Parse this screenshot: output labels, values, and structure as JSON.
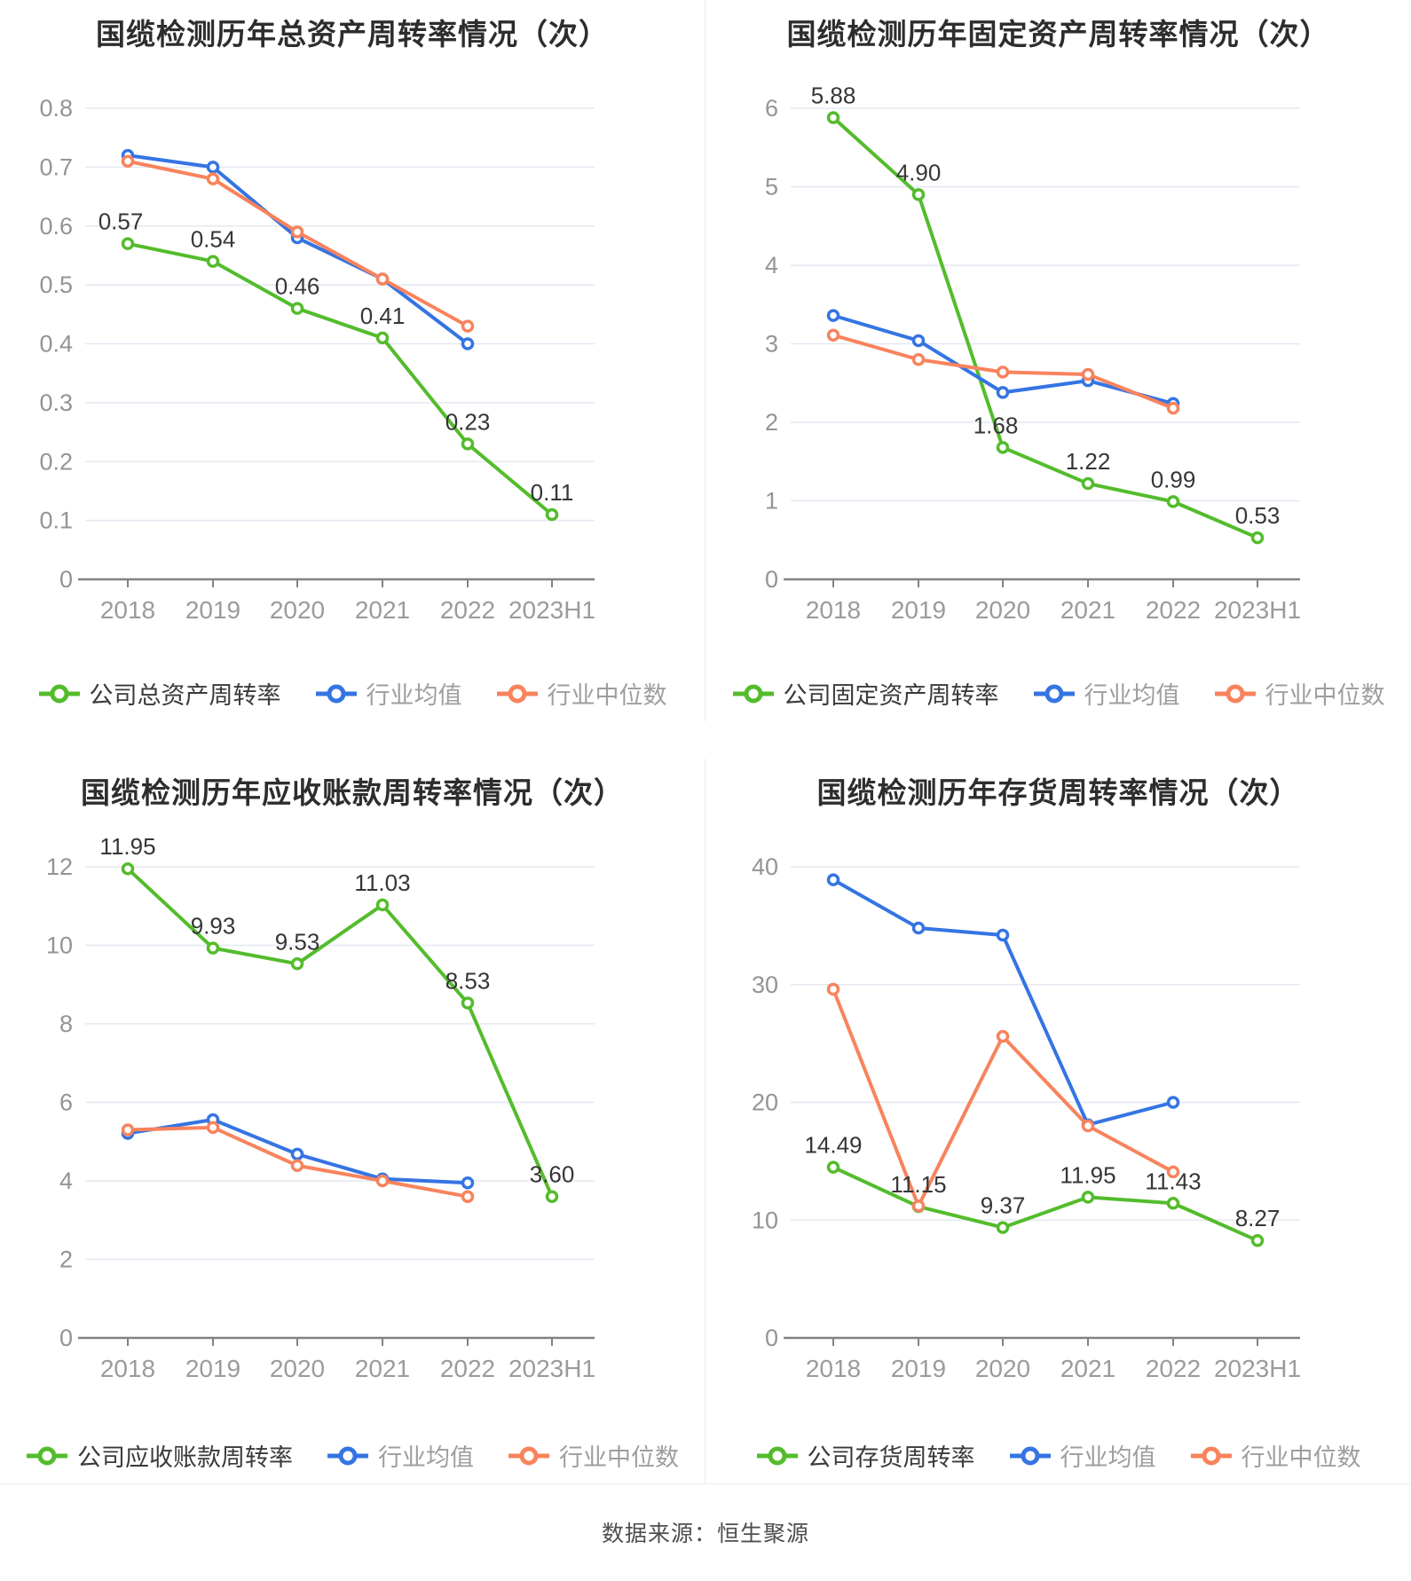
{
  "page": {
    "footer": "数据来源：恒生聚源"
  },
  "colors": {
    "company": "#53bc2c",
    "mean": "#3574e3",
    "median": "#f8835c",
    "grid": "#e4e8f2",
    "axis": "#828282",
    "tick_label": "#949494",
    "title": "#2d2d2d",
    "data_label": "#363636",
    "legend_muted": "#9e9e9e",
    "divider": "#ececec"
  },
  "legend": {
    "mean_label": "行业均值",
    "median_label": "行业中位数"
  },
  "chart_data": [
    {
      "type": "line",
      "title": "国缆检测历年总资产周转率情况（次）",
      "categories": [
        "2018",
        "2019",
        "2020",
        "2021",
        "2022",
        "2023H1"
      ],
      "ylim": [
        0,
        0.8
      ],
      "ystep": 0.1,
      "grid": true,
      "legend_position": "bottom",
      "series": [
        {
          "name": "公司总资产周转率",
          "role": "company",
          "values": [
            0.57,
            0.54,
            0.46,
            0.41,
            0.23,
            0.11
          ],
          "data_labels": [
            "0.57",
            "0.54",
            "0.46",
            "0.41",
            "0.23",
            "0.11"
          ]
        },
        {
          "name": "行业均值",
          "role": "mean",
          "values": [
            0.72,
            0.7,
            0.58,
            0.51,
            0.4
          ]
        },
        {
          "name": "行业中位数",
          "role": "median",
          "values": [
            0.71,
            0.68,
            0.59,
            0.51,
            0.43
          ]
        }
      ]
    },
    {
      "type": "line",
      "title": "国缆检测历年固定资产周转率情况（次）",
      "categories": [
        "2018",
        "2019",
        "2020",
        "2021",
        "2022",
        "2023H1"
      ],
      "ylim": [
        0,
        6
      ],
      "ystep": 1,
      "grid": true,
      "legend_position": "bottom",
      "series": [
        {
          "name": "公司固定资产周转率",
          "role": "company",
          "values": [
            5.88,
            4.9,
            1.68,
            1.22,
            0.99,
            0.53
          ],
          "data_labels": [
            "5.88",
            "4.90",
            "1.68",
            "1.22",
            "0.99",
            "0.53"
          ]
        },
        {
          "name": "行业均值",
          "role": "mean",
          "values": [
            3.36,
            3.04,
            2.38,
            2.53,
            2.24
          ]
        },
        {
          "name": "行业中位数",
          "role": "median",
          "values": [
            3.11,
            2.8,
            2.64,
            2.61,
            2.18
          ]
        }
      ]
    },
    {
      "type": "line",
      "title": "国缆检测历年应收账款周转率情况（次）",
      "categories": [
        "2018",
        "2019",
        "2020",
        "2021",
        "2022",
        "2023H1"
      ],
      "ylim": [
        0,
        12
      ],
      "ystep": 2,
      "grid": true,
      "legend_position": "bottom",
      "series": [
        {
          "name": "公司应收账款周转率",
          "role": "company",
          "values": [
            11.95,
            9.93,
            9.53,
            11.03,
            8.53,
            3.6
          ],
          "data_labels": [
            "11.95",
            "9.93",
            "9.53",
            "11.03",
            "8.53",
            "3.60"
          ]
        },
        {
          "name": "行业均值",
          "role": "mean",
          "values": [
            5.21,
            5.56,
            4.68,
            4.05,
            3.95
          ]
        },
        {
          "name": "行业中位数",
          "role": "median",
          "values": [
            5.3,
            5.36,
            4.39,
            4.0,
            3.6
          ]
        }
      ]
    },
    {
      "type": "line",
      "title": "国缆检测历年存货周转率情况（次）",
      "categories": [
        "2018",
        "2019",
        "2020",
        "2021",
        "2022",
        "2023H1"
      ],
      "ylim": [
        0,
        40
      ],
      "ystep": 10,
      "grid": true,
      "legend_position": "bottom",
      "series": [
        {
          "name": "公司存货周转率",
          "role": "company",
          "values": [
            14.49,
            11.15,
            9.37,
            11.95,
            11.43,
            8.27
          ],
          "data_labels": [
            "14.49",
            "11.15",
            "9.37",
            "11.95",
            "11.43",
            "8.27"
          ]
        },
        {
          "name": "行业均值",
          "role": "mean",
          "values": [
            38.9,
            34.8,
            34.2,
            18.1,
            20.0
          ]
        },
        {
          "name": "行业中位数",
          "role": "median",
          "values": [
            29.6,
            11.2,
            25.6,
            18.0,
            14.1
          ]
        }
      ]
    }
  ]
}
